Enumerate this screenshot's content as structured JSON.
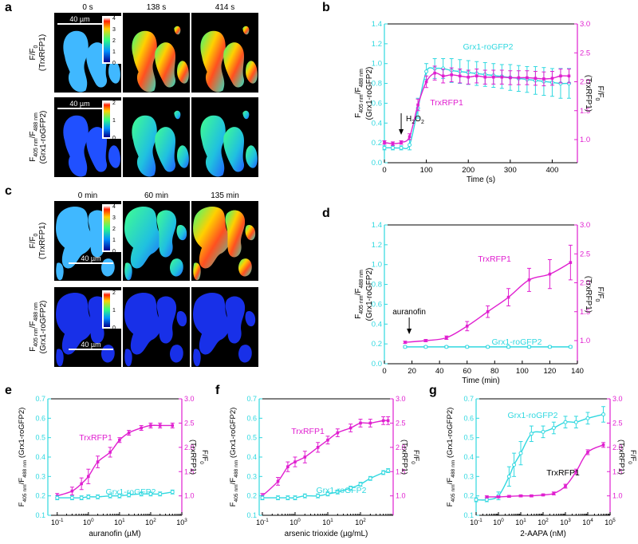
{
  "panel_letters": [
    "a",
    "b",
    "c",
    "d",
    "e",
    "f",
    "g"
  ],
  "magenta": "#e020d0",
  "cyan": "#30d8e0",
  "panel_a": {
    "times": [
      "0 s",
      "138 s",
      "414 s"
    ],
    "scale_bar": "40 µm",
    "row1_label": [
      "F/F",
      "0",
      "(TrxRFP1)"
    ],
    "row2_label": [
      "F",
      "405 nm",
      "/F",
      "488 nm",
      "(Grx1-roGFP2)"
    ],
    "colorbar_top": [
      "4",
      "3",
      "2",
      "1",
      "0"
    ],
    "colorbar_bottom": [
      "2",
      "1",
      "0"
    ]
  },
  "panel_c": {
    "times": [
      "0 min",
      "60 min",
      "135 min"
    ],
    "scale_bar": "40 µm",
    "colorbar_top": [
      "4",
      "3",
      "2",
      "1",
      "0"
    ],
    "colorbar_bottom": [
      "2",
      "1",
      "0"
    ]
  },
  "left_axis_label": [
    "F",
    "405 nm",
    "/F",
    "488 nm",
    "(Grx1-roGFP2)"
  ],
  "right_axis_label": [
    "F/F",
    "0",
    "(TrxRFP1)"
  ],
  "chart_data": [
    {
      "id": "b",
      "type": "line",
      "xlabel": "Time (s)",
      "xlim": [
        0,
        460
      ],
      "xticks": [
        0,
        100,
        200,
        300,
        400
      ],
      "ylim": [
        0,
        1.4
      ],
      "yticks": [
        0.0,
        0.2,
        0.4,
        0.6,
        0.8,
        1.0,
        1.2,
        1.4
      ],
      "y2lim": [
        0.6,
        3.0
      ],
      "y2ticks": [
        1.0,
        1.5,
        2.0,
        2.5,
        3.0
      ],
      "annotation": {
        "text": "H",
        "sub": "2",
        "text2": "O",
        "sub2": "2",
        "x": 40
      },
      "series": [
        {
          "name": "Grx1-roGFP2",
          "axis": "left",
          "x": [
            0,
            20,
            40,
            60,
            80,
            100,
            120,
            140,
            160,
            180,
            200,
            220,
            240,
            260,
            280,
            300,
            320,
            340,
            360,
            380,
            400,
            420,
            440
          ],
          "y": [
            0.15,
            0.15,
            0.15,
            0.18,
            0.55,
            0.92,
            0.95,
            0.95,
            0.93,
            0.92,
            0.91,
            0.9,
            0.89,
            0.88,
            0.87,
            0.86,
            0.85,
            0.84,
            0.83,
            0.82,
            0.81,
            0.8,
            0.8
          ],
          "err": [
            0.02,
            0.02,
            0.02,
            0.05,
            0.1,
            0.08,
            0.1,
            0.1,
            0.12,
            0.12,
            0.12,
            0.12,
            0.12,
            0.12,
            0.12,
            0.13,
            0.13,
            0.13,
            0.14,
            0.14,
            0.14,
            0.15,
            0.15
          ]
        },
        {
          "name": "TrxRFP1",
          "axis": "right",
          "x": [
            0,
            20,
            40,
            60,
            80,
            100,
            120,
            140,
            160,
            180,
            200,
            220,
            240,
            260,
            280,
            300,
            320,
            340,
            360,
            380,
            400,
            420,
            440
          ],
          "y": [
            0.95,
            0.93,
            0.95,
            1.05,
            1.6,
            2.0,
            2.15,
            2.1,
            2.12,
            2.1,
            2.08,
            2.1,
            2.08,
            2.08,
            2.08,
            2.07,
            2.07,
            2.07,
            2.06,
            2.05,
            2.06,
            2.1,
            2.1
          ],
          "err": [
            0.03,
            0.03,
            0.03,
            0.05,
            0.1,
            0.1,
            0.12,
            0.12,
            0.12,
            0.12,
            0.12,
            0.12,
            0.12,
            0.12,
            0.12,
            0.12,
            0.12,
            0.12,
            0.12,
            0.12,
            0.12,
            0.12,
            0.12
          ]
        }
      ]
    },
    {
      "id": "d",
      "type": "line",
      "xlabel": "Time (min)",
      "xlim": [
        0,
        140
      ],
      "xticks": [
        0,
        20,
        40,
        60,
        80,
        100,
        120,
        140
      ],
      "ylim": [
        0,
        1.4
      ],
      "yticks": [
        0.0,
        0.2,
        0.4,
        0.6,
        0.8,
        1.0,
        1.2,
        1.4
      ],
      "y2lim": [
        0.6,
        3.0
      ],
      "y2ticks": [
        1.0,
        1.5,
        2.0,
        2.5,
        3.0
      ],
      "annotation": {
        "text": "auranofin",
        "x": 18
      },
      "series": [
        {
          "name": "Grx1-roGFP2",
          "axis": "left",
          "x": [
            15,
            30,
            45,
            60,
            75,
            90,
            105,
            120,
            135
          ],
          "y": [
            0.17,
            0.17,
            0.17,
            0.17,
            0.17,
            0.17,
            0.17,
            0.17,
            0.17
          ],
          "err": [
            0.01,
            0.01,
            0.01,
            0.01,
            0.01,
            0.01,
            0.01,
            0.01,
            0.01
          ]
        },
        {
          "name": "TrxRFP1",
          "axis": "right",
          "x": [
            15,
            30,
            45,
            60,
            75,
            90,
            105,
            120,
            135
          ],
          "y": [
            0.97,
            1.0,
            1.05,
            1.25,
            1.5,
            1.75,
            2.05,
            2.15,
            2.35
          ],
          "err": [
            0.02,
            0.02,
            0.03,
            0.08,
            0.1,
            0.15,
            0.2,
            0.25,
            0.3
          ]
        }
      ]
    },
    {
      "id": "e",
      "type": "scatter",
      "xlabel": "auranofin (µM)",
      "xscale": "log",
      "xlim": [
        0.05,
        1000
      ],
      "xticks": [
        "10",
        "10",
        "10",
        "10",
        "10"
      ],
      "xtick_exp": [
        "-1",
        "0",
        "1",
        "2",
        "3"
      ],
      "ylim": [
        0.1,
        0.7
      ],
      "yticks": [
        0.1,
        0.2,
        0.3,
        0.4,
        0.5,
        0.6,
        0.7
      ],
      "y2lim": [
        0.6,
        3.0
      ],
      "y2ticks": [
        1.0,
        1.5,
        2.0,
        2.5,
        3.0
      ],
      "series": [
        {
          "name": "TrxRFP1",
          "axis": "right",
          "x": [
            0.1,
            0.3,
            0.6,
            1,
            2,
            5,
            10,
            20,
            50,
            100,
            200,
            500
          ],
          "y": [
            1.0,
            1.1,
            1.25,
            1.4,
            1.7,
            1.9,
            2.15,
            2.3,
            2.4,
            2.45,
            2.45,
            2.45
          ],
          "err": [
            0.05,
            0.08,
            0.12,
            0.15,
            0.12,
            0.1,
            0.05,
            0.05,
            0.05,
            0.05,
            0.05,
            0.05
          ]
        },
        {
          "name": "Grx1-roGFP2",
          "axis": "left",
          "x": [
            0.1,
            0.3,
            0.6,
            1,
            2,
            5,
            10,
            20,
            50,
            100,
            200,
            500
          ],
          "y": [
            0.19,
            0.19,
            0.19,
            0.195,
            0.195,
            0.2,
            0.2,
            0.205,
            0.21,
            0.21,
            0.21,
            0.22
          ],
          "err": [
            0.01,
            0.01,
            0.01,
            0.01,
            0.01,
            0.01,
            0.01,
            0.01,
            0.01,
            0.01,
            0.01,
            0.01
          ]
        }
      ]
    },
    {
      "id": "f",
      "type": "scatter",
      "xlabel": "arsenic trioxide (µg/mL)",
      "xscale": "log",
      "xlim": [
        0.08,
        1000
      ],
      "xticks": [
        "10",
        "10",
        "10",
        "10"
      ],
      "xtick_exp": [
        "-1",
        "0",
        "1",
        "2"
      ],
      "ylim": [
        0.1,
        0.7
      ],
      "yticks": [
        0.1,
        0.2,
        0.3,
        0.4,
        0.5,
        0.6,
        0.7
      ],
      "y2lim": [
        0.6,
        3.0
      ],
      "y2ticks": [
        1.0,
        1.5,
        2.0,
        2.5,
        3.0
      ],
      "series": [
        {
          "name": "TrxRFP1",
          "axis": "right",
          "x": [
            0.1,
            0.3,
            0.6,
            1,
            2,
            5,
            10,
            20,
            50,
            100,
            200,
            500,
            700
          ],
          "y": [
            1.0,
            1.3,
            1.6,
            1.7,
            1.8,
            2.0,
            2.15,
            2.3,
            2.4,
            2.5,
            2.5,
            2.55,
            2.55
          ],
          "err": [
            0.05,
            0.08,
            0.1,
            0.1,
            0.12,
            0.1,
            0.08,
            0.08,
            0.08,
            0.08,
            0.08,
            0.08,
            0.08
          ]
        },
        {
          "name": "Grx1-roGFP2",
          "axis": "left",
          "x": [
            0.1,
            0.3,
            0.6,
            1,
            2,
            5,
            10,
            20,
            50,
            100,
            200,
            500,
            700
          ],
          "y": [
            0.19,
            0.19,
            0.19,
            0.19,
            0.2,
            0.2,
            0.21,
            0.22,
            0.24,
            0.26,
            0.29,
            0.32,
            0.33
          ],
          "err": [
            0.01,
            0.01,
            0.01,
            0.01,
            0.01,
            0.01,
            0.01,
            0.01,
            0.01,
            0.01,
            0.01,
            0.01,
            0.01
          ]
        }
      ]
    },
    {
      "id": "g",
      "type": "scatter",
      "xlabel": "2-AAPA (nM)",
      "xscale": "log",
      "xlim": [
        0.1,
        100000
      ],
      "xticks": [
        "10",
        "10",
        "10",
        "10",
        "10",
        "10",
        "10"
      ],
      "xtick_exp": [
        "-1",
        "0",
        "1",
        "2",
        "3",
        "4",
        "5"
      ],
      "ylim": [
        0.1,
        0.7
      ],
      "yticks": [
        0.1,
        0.2,
        0.3,
        0.4,
        0.5,
        0.6,
        0.7
      ],
      "y2lim": [
        0.6,
        3.0
      ],
      "y2ticks": [
        1.0,
        1.5,
        2.0,
        2.5,
        3.0
      ],
      "series": [
        {
          "name": "Grx1-roGFP2",
          "axis": "left",
          "x": [
            0.1,
            0.3,
            1,
            3,
            5,
            10,
            30,
            100,
            300,
            1000,
            3000,
            10000,
            50000
          ],
          "y": [
            0.18,
            0.18,
            0.2,
            0.3,
            0.36,
            0.42,
            0.52,
            0.53,
            0.55,
            0.58,
            0.58,
            0.6,
            0.62
          ],
          "err": [
            0.01,
            0.01,
            0.02,
            0.05,
            0.06,
            0.06,
            0.04,
            0.03,
            0.03,
            0.03,
            0.03,
            0.03,
            0.04
          ]
        },
        {
          "name": "TrxRFP1",
          "axis": "right",
          "x": [
            0.3,
            1,
            3,
            10,
            30,
            100,
            300,
            1000,
            3000,
            10000,
            50000
          ],
          "y": [
            0.98,
            0.98,
            0.99,
            1.0,
            1.0,
            1.02,
            1.05,
            1.2,
            1.5,
            1.9,
            2.05
          ],
          "err": [
            0.02,
            0.02,
            0.02,
            0.02,
            0.02,
            0.02,
            0.03,
            0.04,
            0.05,
            0.05,
            0.05
          ]
        }
      ]
    }
  ]
}
